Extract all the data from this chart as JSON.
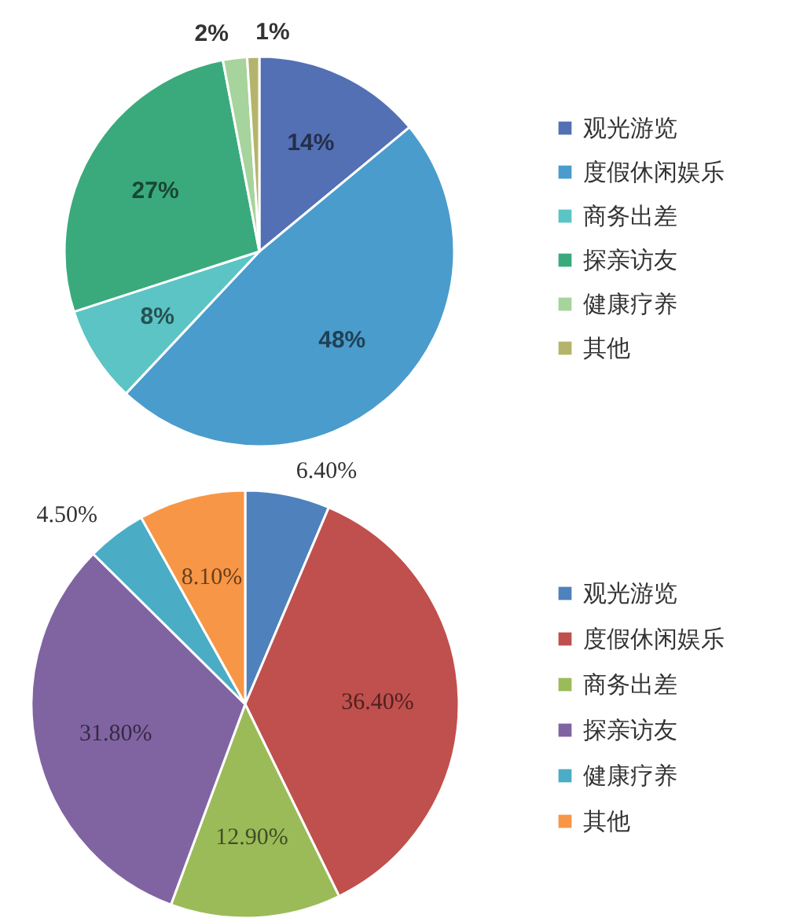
{
  "chart_data": [
    {
      "type": "pie",
      "categories": [
        "观光游览",
        "度假休闲娱乐",
        "商务出差",
        "探亲访友",
        "健康疗养",
        "其他"
      ],
      "values": [
        14,
        48,
        8,
        27,
        2,
        1
      ],
      "value_labels": [
        "14%",
        "48%",
        "8%",
        "27%",
        "2%",
        "1%"
      ],
      "colors": [
        "#5470b4",
        "#4a9ccc",
        "#5cc4c4",
        "#3aaa7c",
        "#a6d49c",
        "#b4b46c"
      ],
      "legend": "right"
    },
    {
      "type": "pie",
      "categories": [
        "观光游览",
        "度假休闲娱乐",
        "商务出差",
        "探亲访友",
        "健康疗养",
        "其他"
      ],
      "values": [
        6.4,
        36.4,
        12.9,
        31.8,
        4.5,
        8.1
      ],
      "value_labels": [
        "6.40%",
        "36.40%",
        "12.90%",
        "31.80%",
        "4.50%",
        "8.10%"
      ],
      "colors": [
        "#4f81bd",
        "#c0504d",
        "#9bbb59",
        "#8064a2",
        "#4bacc6",
        "#f79646"
      ],
      "legend": "right"
    }
  ]
}
